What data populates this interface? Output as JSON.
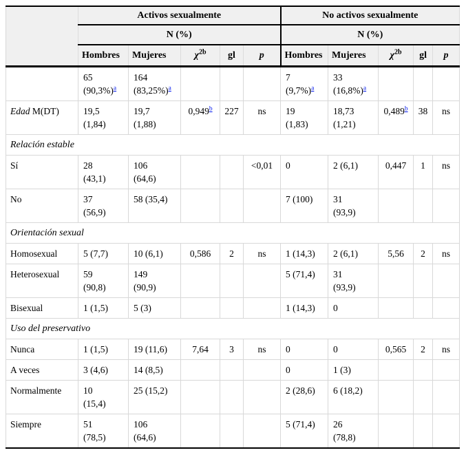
{
  "header": {
    "group_active": "Activos sexualmente",
    "group_inactive": "No activos sexualmente",
    "n_label": "N (%)",
    "col_hombres": "Hombres",
    "col_mujeres": "Mujeres",
    "col_chi": "χ",
    "col_chi_sup": "2b",
    "col_gl": "gl",
    "col_p": "p"
  },
  "colors": {
    "header_bg": "#f0f0f0",
    "rule_black": "#000000",
    "grid_gray": "#d8d8d8",
    "footnote_link_blue": "#0017ee"
  },
  "table": {
    "rows": [
      {
        "type": "data",
        "label": "",
        "cells": [
          {
            "text": "65\n(90,3%)",
            "sup": "a"
          },
          {
            "text": "164\n(83,25%)",
            "sup": "a"
          },
          {
            "text": ""
          },
          {
            "text": ""
          },
          {
            "text": ""
          },
          {
            "text": "7\n(9,7%)",
            "sup": "a"
          },
          {
            "text": "33\n(16,8%)",
            "sup": "a"
          },
          {
            "text": ""
          },
          {
            "text": ""
          },
          {
            "text": ""
          }
        ]
      },
      {
        "type": "data",
        "label_em": "Edad",
        "label": " M(DT)",
        "cells": [
          {
            "text": "19,5\n(1,84)"
          },
          {
            "text": "19,7\n(1,88)"
          },
          {
            "text": "0,949",
            "sup": "b"
          },
          {
            "text": "227"
          },
          {
            "text": "ns"
          },
          {
            "text": "19\n(1,83)"
          },
          {
            "text": "18,73\n(1,21)"
          },
          {
            "text": "0,489",
            "sup": "b"
          },
          {
            "text": "38"
          },
          {
            "text": "ns"
          }
        ]
      },
      {
        "type": "section",
        "label": "Relación estable"
      },
      {
        "type": "data",
        "label": "Sí",
        "cells": [
          {
            "text": "28\n(43,1)"
          },
          {
            "text": "106\n(64,6)"
          },
          {
            "text": ""
          },
          {
            "text": ""
          },
          {
            "text": "<0,01"
          },
          {
            "text": "0"
          },
          {
            "text": "2 (6,1)"
          },
          {
            "text": "0,447"
          },
          {
            "text": "1"
          },
          {
            "text": "ns"
          }
        ]
      },
      {
        "type": "data",
        "label": "No",
        "cells": [
          {
            "text": "37\n(56,9)"
          },
          {
            "text": "58 (35,4)"
          },
          {
            "text": ""
          },
          {
            "text": ""
          },
          {
            "text": ""
          },
          {
            "text": "7 (100)"
          },
          {
            "text": "31\n(93,9)"
          },
          {
            "text": ""
          },
          {
            "text": ""
          },
          {
            "text": ""
          }
        ]
      },
      {
        "type": "section",
        "label": "Orientación sexual"
      },
      {
        "type": "data",
        "label": "Homosexual",
        "cells": [
          {
            "text": "5 (7,7)"
          },
          {
            "text": "10 (6,1)"
          },
          {
            "text": "0,586"
          },
          {
            "text": "2"
          },
          {
            "text": "ns"
          },
          {
            "text": "1 (14,3)"
          },
          {
            "text": "2 (6,1)"
          },
          {
            "text": "5,56"
          },
          {
            "text": "2"
          },
          {
            "text": "ns"
          }
        ]
      },
      {
        "type": "data",
        "label": "Heterosexual",
        "cells": [
          {
            "text": "59\n(90,8)"
          },
          {
            "text": "149\n(90,9)"
          },
          {
            "text": ""
          },
          {
            "text": ""
          },
          {
            "text": ""
          },
          {
            "text": "5 (71,4)"
          },
          {
            "text": "31\n(93,9)"
          },
          {
            "text": ""
          },
          {
            "text": ""
          },
          {
            "text": ""
          }
        ]
      },
      {
        "type": "data",
        "label": "Bisexual",
        "cells": [
          {
            "text": "1 (1,5)"
          },
          {
            "text": "5 (3)"
          },
          {
            "text": ""
          },
          {
            "text": ""
          },
          {
            "text": ""
          },
          {
            "text": "1 (14,3)"
          },
          {
            "text": "0"
          },
          {
            "text": ""
          },
          {
            "text": ""
          },
          {
            "text": ""
          }
        ]
      },
      {
        "type": "section",
        "label": "Uso del preservativo"
      },
      {
        "type": "data",
        "label": "Nunca",
        "cells": [
          {
            "text": "1 (1,5)"
          },
          {
            "text": "19 (11,6)"
          },
          {
            "text": "7,64"
          },
          {
            "text": "3"
          },
          {
            "text": "ns"
          },
          {
            "text": "0"
          },
          {
            "text": "0"
          },
          {
            "text": "0,565"
          },
          {
            "text": "2"
          },
          {
            "text": "ns"
          }
        ]
      },
      {
        "type": "data",
        "label": "A veces",
        "cells": [
          {
            "text": "3 (4,6)"
          },
          {
            "text": "14 (8,5)"
          },
          {
            "text": ""
          },
          {
            "text": ""
          },
          {
            "text": ""
          },
          {
            "text": "0"
          },
          {
            "text": "1 (3)"
          },
          {
            "text": ""
          },
          {
            "text": ""
          },
          {
            "text": ""
          }
        ]
      },
      {
        "type": "data",
        "label": "Normalmente",
        "cells": [
          {
            "text": "10\n(15,4)"
          },
          {
            "text": "25 (15,2)"
          },
          {
            "text": ""
          },
          {
            "text": ""
          },
          {
            "text": ""
          },
          {
            "text": "2 (28,6)"
          },
          {
            "text": "6 (18,2)"
          },
          {
            "text": ""
          },
          {
            "text": ""
          },
          {
            "text": ""
          }
        ]
      },
      {
        "type": "data",
        "label": "Siempre",
        "cells": [
          {
            "text": "51\n(78,5)"
          },
          {
            "text": "106\n(64,6)"
          },
          {
            "text": ""
          },
          {
            "text": ""
          },
          {
            "text": ""
          },
          {
            "text": "5 (71,4)"
          },
          {
            "text": "26\n(78,8)"
          },
          {
            "text": ""
          },
          {
            "text": ""
          },
          {
            "text": ""
          }
        ]
      }
    ]
  }
}
